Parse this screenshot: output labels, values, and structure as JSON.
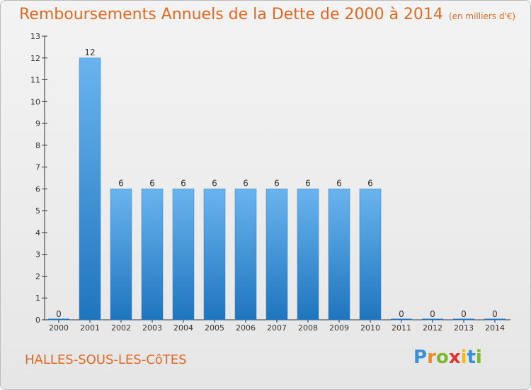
{
  "title": "Remboursements Annuels de la Dette de 2000 à 2014",
  "subtitle": "(en milliers d'€)",
  "commune": "HALLES-SOUS-LES-CôTES",
  "logo": {
    "letters": [
      "P",
      "r",
      "o",
      "x",
      "i",
      "t",
      "i"
    ],
    "colors": [
      "#3a8fd6",
      "#f08a1c",
      "#7cb82f",
      "#e6322d",
      "#f5b91a",
      "#3a8fd6",
      "#7cb82f"
    ]
  },
  "colors": {
    "bar_top": "#6ab4ee",
    "bar_bottom": "#1f75bd",
    "title": "#e06a23",
    "axis": "#333333"
  },
  "chart_data": {
    "type": "bar",
    "categories": [
      "2000",
      "2001",
      "2002",
      "2003",
      "2004",
      "2005",
      "2006",
      "2007",
      "2008",
      "2009",
      "2010",
      "2011",
      "2012",
      "2013",
      "2014"
    ],
    "values": [
      0,
      12,
      6,
      6,
      6,
      6,
      6,
      6,
      6,
      6,
      6,
      0,
      0,
      0,
      0
    ],
    "data_labels": [
      "0",
      "12",
      "6",
      "6",
      "6",
      "6",
      "6",
      "6",
      "6",
      "6",
      "6",
      "0",
      "0",
      "0",
      "0"
    ],
    "yticks": [
      0,
      1,
      2,
      3,
      4,
      5,
      6,
      7,
      8,
      9,
      10,
      11,
      12,
      13
    ],
    "ylim": [
      0,
      13
    ],
    "grid": false
  }
}
